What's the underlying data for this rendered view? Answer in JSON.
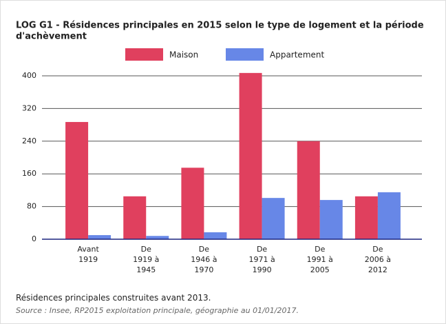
{
  "chart_data": {
    "type": "bar",
    "title": [
      "LOG G1 - Résidences principales en 2015 selon le type de logement et la période",
      "d'achèvement"
    ],
    "categories": [
      [
        "Avant",
        "1919"
      ],
      [
        "De",
        "1919 à",
        "1945"
      ],
      [
        "De",
        "1946 à",
        "1970"
      ],
      [
        "De",
        "1971 à",
        "1990"
      ],
      [
        "De",
        "1991 à",
        "2005"
      ],
      [
        "De",
        "2006 à",
        "2012"
      ]
    ],
    "series": [
      {
        "name": "Maison",
        "color": "#e0405e",
        "values": [
          287,
          105,
          175,
          407,
          240,
          105
        ]
      },
      {
        "name": "Appartement",
        "color": "#6787e7",
        "values": [
          10,
          8,
          17,
          101,
          96,
          115
        ]
      }
    ],
    "ylim": [
      0,
      400
    ],
    "yticks": [
      0,
      80,
      160,
      240,
      320,
      400
    ],
    "grid": true,
    "note": "Résidences principales construites avant 2013.",
    "source": "Source : Insee, RP2015 exploitation principale, géographie au 01/01/2017."
  }
}
